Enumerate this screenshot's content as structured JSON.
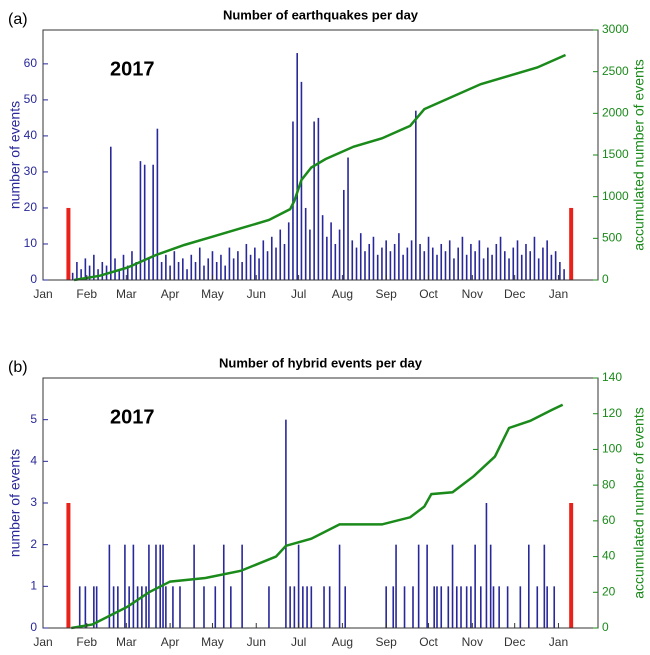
{
  "chart_data": [
    {
      "type": "bar",
      "panel_label": "(a)",
      "title": "Number of earthquakes per day",
      "annotation": "2017",
      "ylabel": "number of events",
      "y2label": "accumulated number of events",
      "xlim": [
        0,
        393
      ],
      "xticks": [
        {
          "value": 0,
          "label": "Jan"
        },
        {
          "value": 31,
          "label": "Feb"
        },
        {
          "value": 59,
          "label": "Mar"
        },
        {
          "value": 90,
          "label": "Apr"
        },
        {
          "value": 120,
          "label": "May"
        },
        {
          "value": 151,
          "label": "Jun"
        },
        {
          "value": 181,
          "label": "Jul"
        },
        {
          "value": 212,
          "label": "Aug"
        },
        {
          "value": 243,
          "label": "Sep"
        },
        {
          "value": 273,
          "label": "Oct"
        },
        {
          "value": 304,
          "label": "Nov"
        },
        {
          "value": 334,
          "label": "Dec"
        },
        {
          "value": 365,
          "label": "Jan"
        }
      ],
      "ylim": [
        0,
        69.4
      ],
      "yticks": [
        0,
        10,
        20,
        30,
        40,
        50,
        60
      ],
      "y2lim": [
        0,
        3000
      ],
      "y2ticks": [
        0,
        500,
        1000,
        1500,
        2000,
        2500,
        3000
      ],
      "series": [
        {
          "color": "#28289a",
          "x": [
            21,
            24,
            27,
            30,
            33,
            36,
            39,
            42,
            45,
            48,
            51,
            54,
            57,
            60,
            63,
            66,
            69,
            72,
            75,
            78,
            81,
            84,
            87,
            90,
            93,
            96,
            99,
            102,
            105,
            108,
            111,
            114,
            117,
            120,
            123,
            126,
            129,
            132,
            135,
            138,
            141,
            144,
            147,
            150,
            153,
            156,
            159,
            162,
            165,
            168,
            171,
            174,
            177,
            180,
            183,
            186,
            189,
            192,
            195,
            198,
            201,
            204,
            207,
            210,
            213,
            216,
            219,
            222,
            225,
            228,
            231,
            234,
            237,
            240,
            243,
            246,
            249,
            252,
            255,
            258,
            261,
            264,
            267,
            270,
            273,
            276,
            279,
            282,
            285,
            288,
            291,
            294,
            297,
            300,
            303,
            306,
            309,
            312,
            315,
            318,
            321,
            324,
            327,
            330,
            333,
            336,
            339,
            342,
            345,
            348,
            351,
            354,
            357,
            360,
            363,
            366,
            369
          ],
          "values": [
            2,
            5,
            3,
            6,
            4,
            7,
            3,
            5,
            4,
            37,
            6,
            3,
            7,
            4,
            8,
            5,
            33,
            32,
            6,
            32,
            42,
            5,
            7,
            4,
            8,
            5,
            6,
            3,
            7,
            5,
            9,
            4,
            6,
            8,
            5,
            7,
            4,
            9,
            6,
            8,
            5,
            10,
            7,
            9,
            6,
            11,
            8,
            12,
            9,
            14,
            10,
            16,
            44,
            63,
            55,
            20,
            14,
            44,
            45,
            18,
            12,
            16,
            10,
            14,
            25,
            34,
            11,
            9,
            13,
            8,
            10,
            12,
            7,
            9,
            11,
            8,
            10,
            13,
            7,
            9,
            11,
            47,
            10,
            8,
            12,
            9,
            7,
            10,
            8,
            11,
            6,
            9,
            12,
            7,
            10,
            8,
            11,
            6,
            9,
            7,
            10,
            12,
            8,
            6,
            9,
            11,
            7,
            10,
            8,
            12,
            6,
            9,
            11,
            7,
            8,
            5,
            3
          ]
        },
        {
          "type": "line",
          "axis": "y2",
          "color": "#1a8a1a",
          "x": [
            22,
            40,
            60,
            80,
            100,
            120,
            140,
            160,
            175,
            178,
            183,
            190,
            200,
            220,
            240,
            260,
            270,
            290,
            310,
            330,
            350,
            370
          ],
          "values": [
            0,
            50,
            150,
            300,
            420,
            520,
            620,
            720,
            850,
            950,
            1200,
            1350,
            1450,
            1600,
            1700,
            1850,
            2050,
            2200,
            2350,
            2450,
            2550,
            2700
          ]
        }
      ],
      "markers": {
        "color": "#e8221b",
        "x": [
          18,
          374
        ],
        "values": [
          20,
          20
        ]
      }
    },
    {
      "type": "bar",
      "panel_label": "(b)",
      "title": "Number of hybrid events per day",
      "annotation": "2017",
      "ylabel": "number of events",
      "y2label": "accumulated number of events",
      "xlim": [
        0,
        393
      ],
      "xticks": [
        {
          "value": 0,
          "label": "Jan"
        },
        {
          "value": 31,
          "label": "Feb"
        },
        {
          "value": 59,
          "label": "Mar"
        },
        {
          "value": 90,
          "label": "Apr"
        },
        {
          "value": 120,
          "label": "May"
        },
        {
          "value": 151,
          "label": "Jun"
        },
        {
          "value": 181,
          "label": "Jul"
        },
        {
          "value": 212,
          "label": "Aug"
        },
        {
          "value": 243,
          "label": "Sep"
        },
        {
          "value": 273,
          "label": "Oct"
        },
        {
          "value": 304,
          "label": "Nov"
        },
        {
          "value": 334,
          "label": "Dec"
        },
        {
          "value": 365,
          "label": "Jan"
        }
      ],
      "ylim": [
        0,
        6
      ],
      "yticks": [
        0,
        1,
        2,
        3,
        4,
        5
      ],
      "y2lim": [
        0,
        140
      ],
      "y2ticks": [
        0,
        20,
        40,
        60,
        80,
        100,
        120,
        140
      ],
      "series": [
        {
          "color": "#28289a",
          "x": [
            26,
            30,
            36,
            38,
            47,
            50,
            53,
            58,
            61,
            64,
            67,
            70,
            73,
            75,
            80,
            83,
            85,
            87,
            92,
            97,
            107,
            114,
            122,
            128,
            133,
            141,
            160,
            172,
            175,
            178,
            181,
            184,
            187,
            190,
            199,
            203,
            210,
            214,
            243,
            248,
            250,
            256,
            262,
            266,
            272,
            277,
            279,
            282,
            287,
            290,
            293,
            296,
            300,
            303,
            306,
            310,
            314,
            317,
            319,
            323,
            329,
            338,
            344,
            350,
            355,
            357,
            362
          ],
          "values": [
            1,
            1,
            1,
            1,
            2,
            1,
            1,
            2,
            1,
            2,
            1,
            1,
            1,
            2,
            2,
            2,
            2,
            1,
            1,
            1,
            2,
            1,
            1,
            2,
            1,
            2,
            1,
            5,
            1,
            1,
            2,
            1,
            1,
            1,
            1,
            1,
            2,
            1,
            1,
            1,
            2,
            1,
            1,
            2,
            2,
            1,
            1,
            1,
            1,
            2,
            1,
            1,
            1,
            1,
            2,
            1,
            3,
            2,
            1,
            1,
            1,
            1,
            2,
            1,
            2,
            1,
            1
          ]
        },
        {
          "type": "line",
          "axis": "y2",
          "color": "#1a8a1a",
          "x": [
            20,
            35,
            50,
            60,
            75,
            90,
            115,
            140,
            165,
            172,
            190,
            210,
            240,
            260,
            270,
            275,
            290,
            305,
            320,
            330,
            345,
            360,
            368
          ],
          "values": [
            0,
            2,
            8,
            12,
            20,
            26,
            28,
            32,
            40,
            46,
            50,
            58,
            58,
            62,
            68,
            75,
            76,
            85,
            96,
            112,
            116,
            122,
            125
          ]
        }
      ],
      "markers": {
        "color": "#e8221b",
        "x": [
          18,
          374
        ],
        "values": [
          3,
          3
        ]
      }
    }
  ]
}
